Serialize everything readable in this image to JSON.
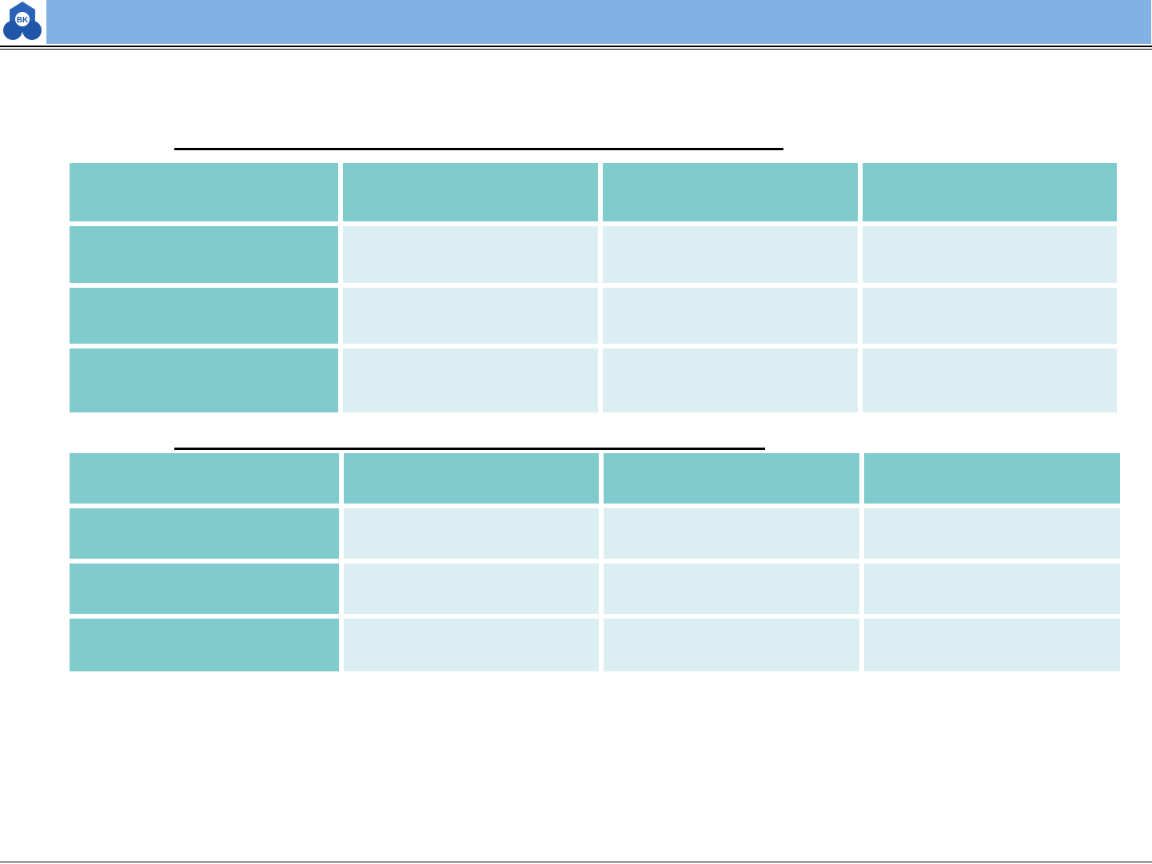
{
  "logo": {
    "text": "BK"
  }
}
